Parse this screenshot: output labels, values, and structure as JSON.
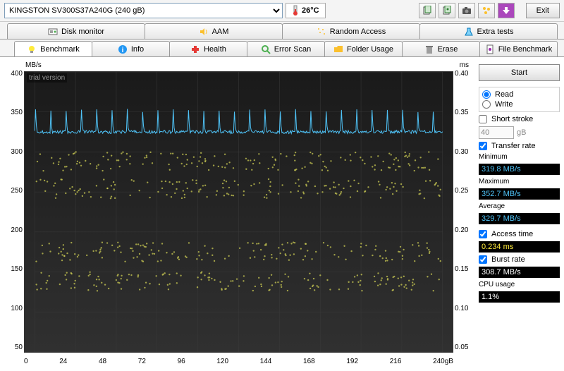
{
  "topbar": {
    "drive": "KINGSTON SV300S37A240G (240 gB)",
    "temperature": "26°C",
    "exit_label": "Exit"
  },
  "tabs_row1": [
    {
      "label": "Disk monitor",
      "icon": "disk-monitor-icon"
    },
    {
      "label": "AAM",
      "icon": "speaker-icon"
    },
    {
      "label": "Random Access",
      "icon": "random-icon"
    },
    {
      "label": "Extra tests",
      "icon": "flask-icon"
    }
  ],
  "tabs_row2": [
    {
      "label": "Benchmark",
      "icon": "bulb-icon",
      "active": true
    },
    {
      "label": "Info",
      "icon": "info-icon"
    },
    {
      "label": "Health",
      "icon": "health-icon"
    },
    {
      "label": "Error Scan",
      "icon": "search-icon"
    },
    {
      "label": "Folder Usage",
      "icon": "folder-icon"
    },
    {
      "label": "Erase",
      "icon": "trash-icon"
    },
    {
      "label": "File Benchmark",
      "icon": "file-icon"
    }
  ],
  "chart": {
    "type": "line+scatter",
    "watermark": "trial version",
    "y_left_label": "MB/s",
    "y_left_ticks": [
      "400",
      "350",
      "300",
      "250",
      "200",
      "150",
      "100",
      "50"
    ],
    "y_left_lim": [
      50,
      400
    ],
    "y_right_label": "ms",
    "y_right_ticks": [
      "0.40",
      "0.35",
      "0.30",
      "0.25",
      "0.20",
      "0.15",
      "0.10",
      "0.05"
    ],
    "y_right_lim": [
      0.05,
      0.4
    ],
    "x_ticks": [
      "0",
      "24",
      "48",
      "72",
      "96",
      "120",
      "144",
      "168",
      "192",
      "216",
      "240gB"
    ],
    "x_lim": [
      0,
      240
    ],
    "background_gradient": [
      "#1a1a1a",
      "#303030"
    ],
    "grid_color": "#3a3a3a",
    "line_color": "#4fc3f7",
    "line_width": 1,
    "line_baseline_mbs": 325,
    "line_spike_mbs": 352,
    "line_period_x": 9,
    "scatter_color": "#d4d455",
    "scatter_size": 1.2,
    "scatter_bands_ms": [
      0.288,
      0.254,
      0.175,
      0.138
    ],
    "scatter_band_jitter": 0.012,
    "scatter_points_per_band": 160
  },
  "panel": {
    "start_label": "Start",
    "read_label": "Read",
    "write_label": "Write",
    "read_selected": true,
    "short_stroke_label": "Short stroke",
    "short_stroke_checked": false,
    "short_stroke_value": "40",
    "short_stroke_unit": "gB",
    "transfer_rate_label": "Transfer rate",
    "transfer_rate_checked": true,
    "stats": {
      "min_label": "Minimum",
      "min_value": "319.8 MB/s",
      "max_label": "Maximum",
      "max_value": "352.7 MB/s",
      "avg_label": "Average",
      "avg_value": "329.7 MB/s"
    },
    "access_time_label": "Access time",
    "access_time_checked": true,
    "access_time_value": "0.234 ms",
    "burst_rate_label": "Burst rate",
    "burst_rate_checked": true,
    "burst_rate_value": "308.7 MB/s",
    "cpu_label": "CPU usage",
    "cpu_value": "1.1%"
  },
  "colors": {
    "stat_blue": "#4fc3f7",
    "stat_yellow": "#ffeb3b",
    "stat_white": "#ffffff"
  }
}
